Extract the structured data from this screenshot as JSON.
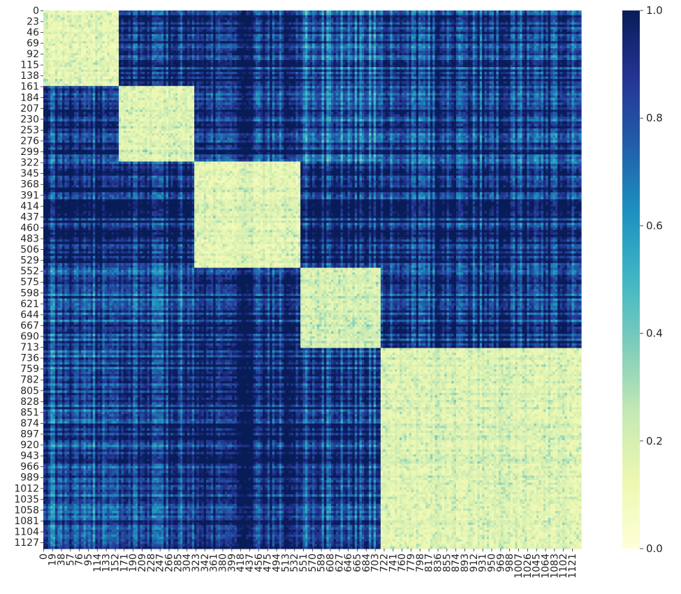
{
  "chart_data": {
    "type": "heatmap",
    "title": "",
    "xlabel": "",
    "ylabel": "",
    "n_rows": 1140,
    "n_cols": 1140,
    "blocks": [
      {
        "start": 0,
        "end": 160
      },
      {
        "start": 160,
        "end": 320
      },
      {
        "start": 320,
        "end": 545
      },
      {
        "start": 545,
        "end": 713
      },
      {
        "start": 713,
        "end": 1140
      }
    ],
    "block_mean_matrix": [
      [
        0.08,
        0.9,
        0.92,
        0.78,
        0.86
      ],
      [
        0.9,
        0.1,
        0.9,
        0.78,
        0.86
      ],
      [
        0.92,
        0.9,
        0.08,
        0.93,
        0.88
      ],
      [
        0.8,
        0.8,
        0.9,
        0.12,
        0.86
      ],
      [
        0.8,
        0.86,
        0.94,
        0.86,
        0.1
      ]
    ],
    "y_tick_labels": [
      "0",
      "23",
      "46",
      "69",
      "92",
      "115",
      "138",
      "161",
      "184",
      "207",
      "230",
      "253",
      "276",
      "299",
      "322",
      "345",
      "368",
      "391",
      "414",
      "437",
      "460",
      "483",
      "506",
      "529",
      "552",
      "575",
      "598",
      "621",
      "644",
      "667",
      "690",
      "713",
      "736",
      "759",
      "782",
      "805",
      "828",
      "851",
      "874",
      "897",
      "920",
      "943",
      "966",
      "989",
      "1012",
      "1035",
      "1058",
      "1081",
      "1104",
      "1127"
    ],
    "x_tick_labels": [
      "0",
      "19",
      "38",
      "57",
      "76",
      "95",
      "114",
      "133",
      "152",
      "171",
      "190",
      "209",
      "228",
      "247",
      "266",
      "285",
      "304",
      "323",
      "342",
      "361",
      "380",
      "399",
      "418",
      "437",
      "456",
      "475",
      "494",
      "513",
      "532",
      "551",
      "570",
      "589",
      "608",
      "627",
      "646",
      "665",
      "684",
      "703",
      "722",
      "741",
      "760",
      "779",
      "798",
      "817",
      "836",
      "855",
      "874",
      "893",
      "912",
      "931",
      "950",
      "969",
      "988",
      "1007",
      "1026",
      "1045",
      "1064",
      "1083",
      "1102",
      "1121"
    ],
    "colorbar": {
      "min": 0.0,
      "max": 1.0,
      "ticks": [
        "0.0",
        "0.2",
        "0.4",
        "0.6",
        "0.8",
        "1.0"
      ],
      "colormap": "YlGnBu",
      "stops": [
        "#ffffd9",
        "#edf8b1",
        "#c7e9b4",
        "#7fcdbb",
        "#41b6c4",
        "#1d91c0",
        "#225ea8",
        "#253494",
        "#081d58"
      ]
    }
  }
}
